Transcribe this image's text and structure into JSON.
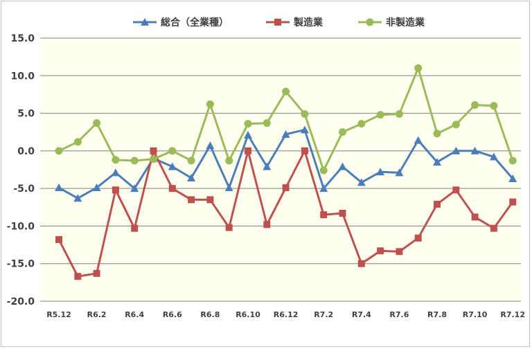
{
  "chart_data": {
    "type": "line",
    "title": "",
    "xlabel": "",
    "ylabel": "",
    "ylim": [
      -20.0,
      15.0
    ],
    "yticks": [
      "15.0",
      "10.0",
      "5.0",
      "0.0",
      "-5.0",
      "-10.0",
      "-15.0",
      "-20.0"
    ],
    "ytick_values": [
      15,
      10,
      5,
      0,
      -5,
      -10,
      -15,
      -20
    ],
    "grid": "horizontal",
    "legend_position": "top",
    "plot_background": "#fffff0",
    "categories": [
      "R5.12",
      "R6.1",
      "R6.2",
      "R6.3",
      "R6.4",
      "R6.5",
      "R6.6",
      "R6.7",
      "R6.8",
      "R6.9",
      "R6.10",
      "R6.11",
      "R6.12",
      "R7.1",
      "R7.2",
      "R7.3",
      "R7.4",
      "R7.5",
      "R7.6",
      "R7.7",
      "R7.8",
      "R7.9",
      "R7.10",
      "R7.11",
      "R7.12"
    ],
    "x_tick_labels": [
      "R5.12",
      "",
      "R6.2",
      "",
      "R6.4",
      "",
      "R6.6",
      "",
      "R6.8",
      "",
      "R6.10",
      "",
      "R6.12",
      "",
      "R7.2",
      "",
      "R7.4",
      "",
      "R7.6",
      "",
      "R7.8",
      "",
      "R7.10",
      "",
      "R7.12"
    ],
    "series": [
      {
        "name": "総合（全業種）",
        "color": "#4a7ebb",
        "marker": "triangle",
        "values": [
          -4.9,
          -6.3,
          -4.9,
          -2.9,
          -5.0,
          -1.0,
          -2.1,
          -3.6,
          0.7,
          -4.9,
          2.1,
          -2.1,
          2.2,
          2.8,
          -5.0,
          -2.1,
          -4.2,
          -2.8,
          -2.9,
          1.4,
          -1.5,
          0.0,
          0.0,
          -0.8,
          -3.7
        ]
      },
      {
        "name": "製造業",
        "color": "#c0504d",
        "marker": "square",
        "values": [
          -11.8,
          -16.7,
          -16.3,
          -5.2,
          -10.3,
          0.0,
          -5.0,
          -6.5,
          -6.5,
          -10.2,
          0.0,
          -9.8,
          -4.9,
          0.0,
          -8.5,
          -8.3,
          -15.0,
          -13.3,
          -13.4,
          -11.6,
          -7.1,
          -5.2,
          -8.8,
          -10.3,
          -6.8
        ]
      },
      {
        "name": "非製造業",
        "color": "#9bbb59",
        "marker": "circle",
        "values": [
          0.0,
          1.2,
          3.7,
          -1.2,
          -1.3,
          -1.1,
          0.0,
          -1.3,
          6.2,
          -1.3,
          3.6,
          3.7,
          7.9,
          4.9,
          -2.6,
          2.5,
          3.6,
          4.8,
          4.9,
          11.0,
          2.3,
          3.5,
          6.1,
          6.0,
          -1.3
        ]
      }
    ]
  }
}
